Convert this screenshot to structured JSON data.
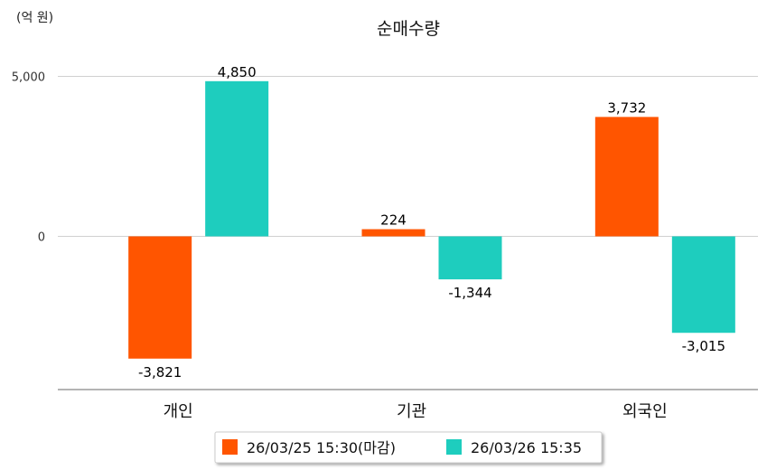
{
  "chart_data": {
    "type": "bar",
    "title": "순매수량",
    "unit": "(억 원)",
    "categories": [
      "개인",
      "기관",
      "외국인"
    ],
    "series": [
      {
        "name": "26/03/25 15:30(마감)",
        "color": "#FF5500",
        "values": [
          -3821,
          224,
          3732
        ]
      },
      {
        "name": "26/03/26 15:35",
        "color": "#1ECDBE",
        "values": [
          4850,
          -1344,
          -3015
        ]
      }
    ],
    "y_ticks": [
      {
        "value": 0,
        "label": "0"
      },
      {
        "value": 5000,
        "label": "5,000"
      }
    ],
    "ylim": [
      -4700,
      5000
    ],
    "grid": true,
    "legend": "bottom-center"
  }
}
